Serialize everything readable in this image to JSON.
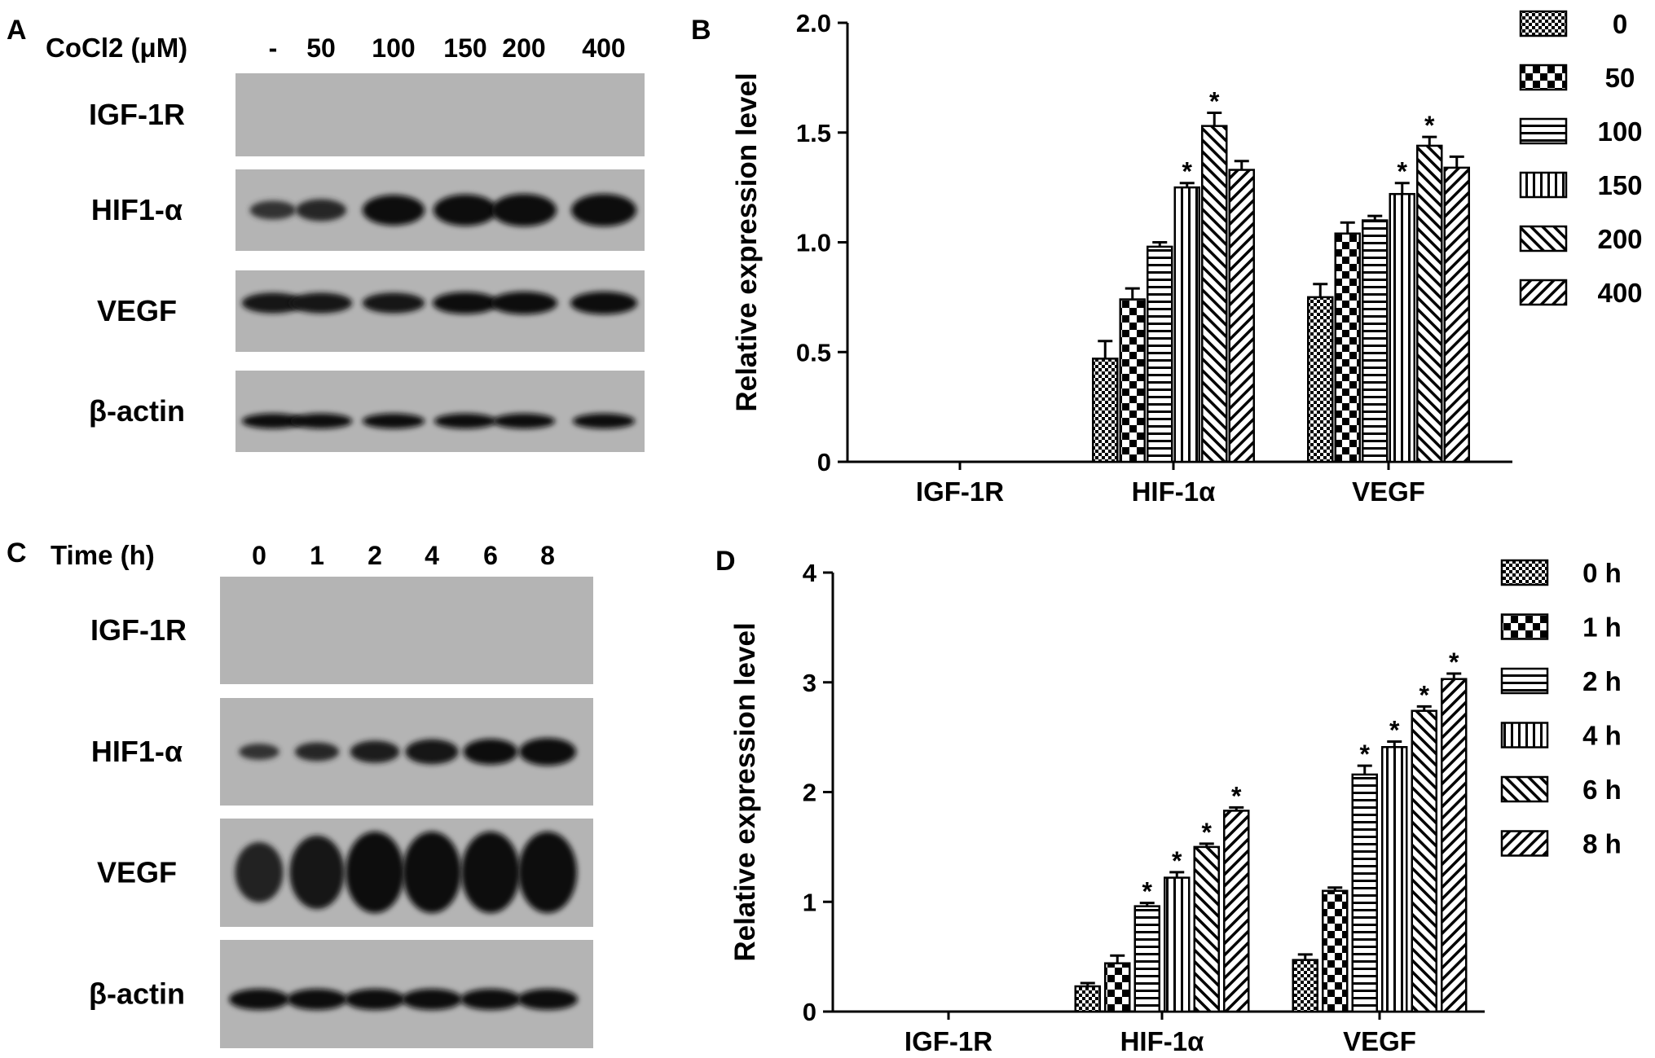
{
  "panels": {
    "a": {
      "letter": "A",
      "header_label": "CoCl2 (μM)",
      "lanes": [
        "-",
        "50",
        "100",
        "150",
        "200",
        "400"
      ],
      "rows": [
        "IGF-1R",
        "HIF1-α",
        "VEGF",
        "β-actin"
      ]
    },
    "b": {
      "letter": "B"
    },
    "c": {
      "letter": "C",
      "header_label": "Time (h)",
      "lanes": [
        "0",
        "1",
        "2",
        "4",
        "6",
        "8"
      ],
      "rows": [
        "IGF-1R",
        "HIF1-α",
        "VEGF",
        "β-actin"
      ]
    },
    "d": {
      "letter": "D"
    }
  },
  "significance_marker": "*",
  "chart_data": [
    {
      "type": "bar",
      "panel": "B",
      "categories": [
        "IGF-1R",
        "HIF-1α",
        "VEGF"
      ],
      "ylabel": "Relative expression level",
      "xlabel": "",
      "ylim": [
        0,
        2.0
      ],
      "yticks": [
        "0",
        "0.5",
        "1.0",
        "1.5",
        "2.0"
      ],
      "legend_position": "right",
      "series": [
        {
          "name": "0",
          "pattern": "checker",
          "values": [
            0,
            0.47,
            0.75
          ],
          "errors": [
            0,
            0.08,
            0.06
          ],
          "significant": [
            false,
            false,
            false
          ]
        },
        {
          "name": "50",
          "pattern": "bigcheck",
          "values": [
            0,
            0.74,
            1.04
          ],
          "errors": [
            0,
            0.05,
            0.05
          ],
          "significant": [
            false,
            false,
            false
          ]
        },
        {
          "name": "100",
          "pattern": "hlines",
          "values": [
            0,
            0.98,
            1.1
          ],
          "errors": [
            0,
            0.02,
            0.02
          ],
          "significant": [
            false,
            false,
            false
          ]
        },
        {
          "name": "150",
          "pattern": "vlines",
          "values": [
            0,
            1.25,
            1.22
          ],
          "errors": [
            0,
            0.02,
            0.05
          ],
          "significant": [
            false,
            true,
            true
          ]
        },
        {
          "name": "200",
          "pattern": "diag",
          "values": [
            0,
            1.53,
            1.44
          ],
          "errors": [
            0,
            0.06,
            0.04
          ],
          "significant": [
            false,
            true,
            true
          ]
        },
        {
          "name": "400",
          "pattern": "antidiag",
          "values": [
            0,
            1.33,
            1.34
          ],
          "errors": [
            0,
            0.04,
            0.05
          ],
          "significant": [
            false,
            false,
            false
          ]
        }
      ]
    },
    {
      "type": "bar",
      "panel": "D",
      "categories": [
        "IGF-1R",
        "HIF-1α",
        "VEGF"
      ],
      "ylabel": "Relative expression level",
      "xlabel": "",
      "ylim": [
        0,
        4
      ],
      "yticks": [
        "0",
        "1",
        "2",
        "3",
        "4"
      ],
      "legend_position": "right",
      "series": [
        {
          "name": "0 h",
          "pattern": "checker",
          "values": [
            0,
            0.23,
            0.47
          ],
          "errors": [
            0,
            0.03,
            0.05
          ],
          "significant": [
            false,
            false,
            false
          ]
        },
        {
          "name": "1 h",
          "pattern": "bigcheck",
          "values": [
            0,
            0.44,
            1.1
          ],
          "errors": [
            0,
            0.07,
            0.03
          ],
          "significant": [
            false,
            false,
            false
          ]
        },
        {
          "name": "2 h",
          "pattern": "hlines",
          "values": [
            0,
            0.96,
            2.16
          ],
          "errors": [
            0,
            0.03,
            0.08
          ],
          "significant": [
            false,
            true,
            true
          ]
        },
        {
          "name": "4 h",
          "pattern": "vlines",
          "values": [
            0,
            1.22,
            2.41
          ],
          "errors": [
            0,
            0.05,
            0.05
          ],
          "significant": [
            false,
            true,
            true
          ]
        },
        {
          "name": "6 h",
          "pattern": "diag",
          "values": [
            0,
            1.5,
            2.74
          ],
          "errors": [
            0,
            0.03,
            0.04
          ],
          "significant": [
            false,
            true,
            true
          ]
        },
        {
          "name": "8 h",
          "pattern": "antidiag",
          "values": [
            0,
            1.83,
            3.03
          ],
          "errors": [
            0,
            0.03,
            0.05
          ],
          "significant": [
            false,
            true,
            true
          ]
        }
      ]
    }
  ],
  "western_blots": [
    {
      "panel": "A",
      "bands": [
        {
          "row": "IGF-1R",
          "intensity": [
            0,
            0,
            0,
            0,
            0,
            0
          ]
        },
        {
          "row": "HIF1-α",
          "intensity": [
            0.35,
            0.5,
            0.9,
            0.95,
            1.0,
            1.0
          ]
        },
        {
          "row": "VEGF",
          "intensity": [
            0.85,
            0.85,
            0.85,
            0.95,
            1.0,
            1.0
          ]
        },
        {
          "row": "β-actin",
          "intensity": [
            0.9,
            0.9,
            0.9,
            0.9,
            0.9,
            0.9
          ]
        }
      ]
    },
    {
      "panel": "C",
      "bands": [
        {
          "row": "IGF-1R",
          "intensity": [
            0,
            0,
            0,
            0,
            0,
            0
          ]
        },
        {
          "row": "HIF1-α",
          "intensity": [
            0.35,
            0.5,
            0.7,
            0.85,
            0.9,
            1.0
          ]
        },
        {
          "row": "VEGF",
          "intensity": [
            0.6,
            0.85,
            1.0,
            1.0,
            1.0,
            1.0
          ]
        },
        {
          "row": "β-actin",
          "intensity": [
            1,
            1,
            1,
            1,
            1,
            1
          ]
        }
      ]
    }
  ]
}
